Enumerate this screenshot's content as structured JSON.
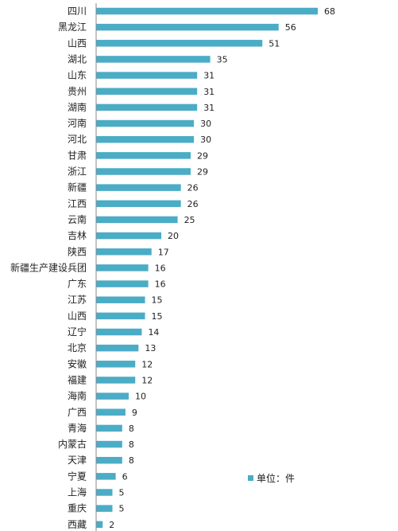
{
  "chart_data": {
    "type": "bar",
    "orientation": "horizontal",
    "categories": [
      "四川",
      "黑龙江",
      "山西",
      "湖北",
      "山东",
      "贵州",
      "湖南",
      "河南",
      "河北",
      "甘肃",
      "浙江",
      "新疆",
      "江西",
      "云南",
      "吉林",
      "陕西",
      "新疆生产建设兵团",
      "广东",
      "江苏",
      "山西",
      "辽宁",
      "北京",
      "安徽",
      "福建",
      "海南",
      "广西",
      "青海",
      "内蒙古",
      "天津",
      "宁夏",
      "上海",
      "重庆",
      "西藏"
    ],
    "values": [
      68,
      56,
      51,
      35,
      31,
      31,
      31,
      30,
      30,
      29,
      29,
      26,
      26,
      25,
      20,
      17,
      16,
      16,
      15,
      15,
      14,
      13,
      12,
      12,
      10,
      9,
      8,
      8,
      8,
      6,
      5,
      5,
      2
    ],
    "series": [
      {
        "name": "单位：件"
      }
    ],
    "title": "",
    "xlabel": "",
    "ylabel": "",
    "xlim": [
      0,
      68
    ],
    "grid": false,
    "legend_position": "right",
    "bar_color": "#4bacc6"
  }
}
